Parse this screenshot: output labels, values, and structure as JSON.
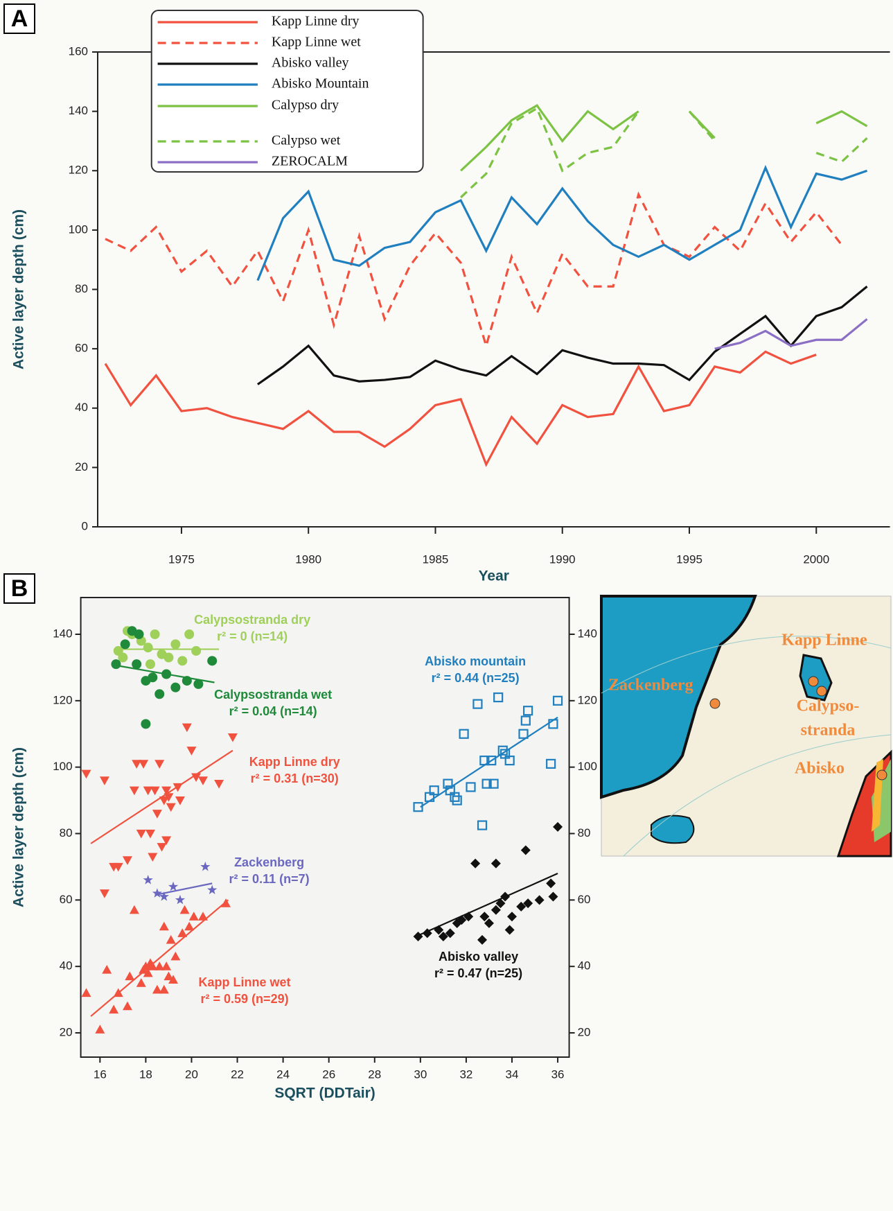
{
  "panel_labels": [
    "A",
    "B"
  ],
  "chart_data": [
    {
      "type": "line",
      "x_label": "Year",
      "y_label": "Active layer depth (cm)",
      "x": [
        1972,
        1973,
        1974,
        1975,
        1976,
        1977,
        1978,
        1979,
        1980,
        1981,
        1982,
        1983,
        1984,
        1985,
        1986,
        1987,
        1988,
        1989,
        1990,
        1991,
        1992,
        1993,
        1994,
        1995,
        1996,
        1997,
        1998,
        1999,
        2000,
        2001,
        2002
      ],
      "xlim": [
        1971.7,
        2002.9
      ],
      "xticks": [
        1975,
        1980,
        1985,
        1990,
        1995,
        2000
      ],
      "ylim": [
        0,
        160
      ],
      "yticks": [
        0,
        20,
        40,
        60,
        80,
        100,
        120,
        140,
        160
      ],
      "series": [
        {
          "name": "Kapp Linne dry",
          "color": "#f0523f",
          "dash": false,
          "values": [
            55,
            41,
            51,
            39,
            40,
            37,
            35,
            33,
            39,
            32,
            32,
            27,
            33,
            41,
            43,
            21,
            37,
            28,
            41,
            37,
            38,
            54,
            39,
            41,
            54,
            52,
            59,
            55,
            58,
            null,
            null
          ]
        },
        {
          "name": "Kapp Linne wet",
          "color": "#f0523f",
          "dash": true,
          "values": [
            97,
            93,
            101,
            86,
            93,
            81,
            93,
            76,
            100,
            68,
            98,
            70,
            88,
            99,
            89,
            61,
            91,
            72,
            92,
            81,
            81,
            112,
            95,
            91,
            101,
            93,
            109,
            96,
            106,
            95,
            null
          ]
        },
        {
          "name": "Abisko valley",
          "color": "#111111",
          "dash": false,
          "values": [
            null,
            null,
            null,
            null,
            null,
            null,
            48,
            54,
            61,
            51,
            49,
            49.5,
            50.5,
            56,
            53,
            51,
            57.5,
            51.5,
            59.5,
            57,
            55,
            55,
            54.5,
            49.5,
            59,
            65,
            71,
            61,
            71,
            74,
            81
          ]
        },
        {
          "name": "Abisko Mountain",
          "color": "#1f7fbf",
          "dash": false,
          "values": [
            null,
            null,
            null,
            null,
            null,
            null,
            83,
            104,
            113,
            90,
            88,
            94,
            96,
            106,
            110,
            93,
            111,
            102,
            114,
            103,
            95,
            91,
            95,
            90,
            95,
            100,
            121,
            101,
            119,
            117,
            120
          ]
        },
        {
          "name": "Calypso dry",
          "color": "#7cc243",
          "dash": false,
          "values": [
            null,
            null,
            null,
            null,
            null,
            null,
            null,
            null,
            null,
            null,
            null,
            null,
            null,
            null,
            120,
            128,
            137,
            142,
            130,
            140,
            134,
            140,
            null,
            140,
            131,
            null,
            null,
            null,
            136,
            140,
            135
          ]
        },
        {
          "name": "Calypso wet",
          "color": "#7cc243",
          "dash": true,
          "values": [
            null,
            null,
            null,
            null,
            null,
            null,
            null,
            null,
            null,
            null,
            null,
            null,
            null,
            null,
            111,
            119,
            136,
            141,
            120,
            126,
            128,
            140,
            null,
            140,
            130,
            null,
            null,
            null,
            126,
            123,
            131
          ]
        },
        {
          "name": "ZEROCALM",
          "color": "#8a6fc4",
          "dash": false,
          "values": [
            null,
            null,
            null,
            null,
            null,
            null,
            null,
            null,
            null,
            null,
            null,
            null,
            null,
            null,
            null,
            null,
            null,
            null,
            null,
            null,
            null,
            null,
            null,
            null,
            60,
            62,
            66,
            61,
            63,
            63,
            70
          ]
        }
      ]
    },
    {
      "type": "scatter",
      "x_label": "SQRT (DDTair)",
      "y_label": "Active layer depth (cm)",
      "xlim": [
        15.16,
        36.5
      ],
      "xticks": [
        16,
        18,
        20,
        22,
        24,
        26,
        28,
        30,
        32,
        34,
        36
      ],
      "ylim": [
        12.7,
        151.06
      ],
      "yticks": [
        20,
        40,
        60,
        80,
        100,
        120,
        140
      ],
      "y2lim": [
        12.7,
        151.06
      ],
      "y2ticks": [
        20,
        40,
        60,
        80,
        100,
        120,
        140
      ],
      "series": [
        {
          "name": "Calypsostranda dry",
          "stat": "r² = 0 (n=14)",
          "color": "#9fd05a",
          "marker": "circle",
          "x": [
            16.8,
            17.2,
            17.4,
            17.8,
            18.1,
            18.4,
            18.7,
            19.0,
            19.3,
            19.6,
            19.9,
            20.2,
            18.2,
            17.0
          ],
          "values": [
            135,
            141,
            140,
            138,
            136,
            140,
            134,
            133,
            137,
            132,
            140,
            135,
            131,
            133
          ],
          "trend": {
            "x": [
              16.8,
              21.2
            ],
            "values": [
              135.5,
              135.5
            ]
          }
        },
        {
          "name": "Calypsostranda wet",
          "stat": "r² = 0.04 (n=14)",
          "color": "#1f8a3a",
          "marker": "circle",
          "x": [
            16.7,
            17.1,
            17.4,
            17.7,
            17.6,
            18.0,
            18.3,
            18.6,
            18.9,
            19.3,
            19.8,
            20.3,
            20.9,
            18.0
          ],
          "values": [
            131,
            137,
            141,
            140,
            131,
            126,
            127,
            122,
            128,
            124,
            126,
            125,
            132,
            113
          ],
          "trend": {
            "x": [
              16.8,
              21.0
            ],
            "values": [
              130.5,
              125.5
            ]
          }
        },
        {
          "name": "Kapp Linne dry",
          "stat": "r² = 0.31 (n=30)",
          "color": "#f0523f",
          "marker": "tri-down",
          "x": [
            15.4,
            16.2,
            16.6,
            16.8,
            16.2,
            17.2,
            17.5,
            17.6,
            17.8,
            17.9,
            18.1,
            18.2,
            18.4,
            18.5,
            18.7,
            18.8,
            18.9,
            19.0,
            19.1,
            18.9,
            19.5,
            19.4,
            19.8,
            20.0,
            20.2,
            20.5,
            21.2,
            21.8,
            18.6,
            18.3
          ],
          "values": [
            98,
            96,
            70,
            70,
            62,
            72,
            93,
            101,
            80,
            101,
            93,
            80,
            93,
            86,
            76,
            90,
            93,
            91,
            88,
            78,
            90,
            94,
            112,
            105,
            97,
            96,
            95,
            109,
            101,
            73
          ],
          "trend": {
            "x": [
              15.6,
              21.8
            ],
            "values": [
              77,
              105
            ]
          }
        },
        {
          "name": "Kapp Linne wet",
          "stat": "r² = 0.59 (n=29)",
          "color": "#f0523f",
          "marker": "tri-up",
          "x": [
            15.4,
            16.0,
            16.3,
            16.6,
            16.8,
            17.2,
            17.3,
            17.5,
            17.8,
            18.0,
            18.1,
            18.3,
            18.5,
            18.8,
            18.9,
            19.0,
            19.1,
            19.3,
            18.8,
            19.7,
            19.9,
            20.1,
            20.5,
            19.6,
            21.5,
            18.2,
            18.6,
            17.9,
            19.2
          ],
          "values": [
            32,
            21,
            39,
            27,
            32,
            28,
            37,
            57,
            35,
            40,
            38,
            40,
            33,
            33,
            40,
            37,
            48,
            43,
            52,
            57,
            52,
            55,
            55,
            50,
            59,
            41,
            40,
            39,
            36
          ],
          "trend": {
            "x": [
              15.6,
              21.6
            ],
            "values": [
              25,
              60
            ]
          }
        },
        {
          "name": "Zackenberg",
          "stat": "r² = 0.11 (n=7)",
          "color": "#6a67c0",
          "marker": "star",
          "x": [
            18.1,
            18.5,
            18.8,
            19.2,
            19.5,
            20.6,
            20.9
          ],
          "values": [
            66,
            62,
            61,
            64,
            60,
            70,
            63
          ],
          "trend": {
            "x": [
              18.4,
              20.9
            ],
            "values": [
              61.5,
              65
            ]
          }
        },
        {
          "name": "Abisko mountain",
          "stat": "r² = 0.44 (n=25)",
          "color": "#1f7fbf",
          "marker": "square",
          "x": [
            29.9,
            30.4,
            30.6,
            31.2,
            31.3,
            31.5,
            31.6,
            31.9,
            32.2,
            32.5,
            32.7,
            32.8,
            32.9,
            33.1,
            33.2,
            33.4,
            33.6,
            33.7,
            33.9,
            34.5,
            34.6,
            34.7,
            35.7,
            35.8,
            36.0
          ],
          "values": [
            88,
            91,
            93,
            95,
            93,
            91,
            90,
            110,
            94,
            119,
            82.5,
            102,
            95,
            102,
            95,
            121,
            105,
            104,
            102,
            110,
            114,
            117,
            101,
            113,
            120
          ],
          "trend": {
            "x": [
              30,
              36
            ],
            "values": [
              88,
              115
            ]
          }
        },
        {
          "name": "Abisko valley",
          "stat": "r² = 0.47 (n=25)",
          "color": "#111111",
          "marker": "diamond",
          "x": [
            29.9,
            30.3,
            30.8,
            31.0,
            31.3,
            31.6,
            31.8,
            32.1,
            32.4,
            32.7,
            32.8,
            33.0,
            33.3,
            33.3,
            33.5,
            33.7,
            33.9,
            34.0,
            34.4,
            34.6,
            34.7,
            35.2,
            35.7,
            35.8,
            36.0
          ],
          "values": [
            49,
            50,
            51,
            49,
            50,
            53,
            54,
            55,
            71,
            48,
            55,
            53,
            71,
            57,
            59,
            61,
            51,
            55,
            58,
            75,
            59,
            60,
            65,
            61,
            82
          ],
          "trend": {
            "x": [
              29.8,
              36
            ],
            "values": [
              49,
              68
            ]
          }
        }
      ]
    }
  ],
  "map": {
    "labels": [
      "Kapp Linne",
      "Zackenberg",
      "Calypso-",
      "stranda",
      "Abisko"
    ]
  }
}
